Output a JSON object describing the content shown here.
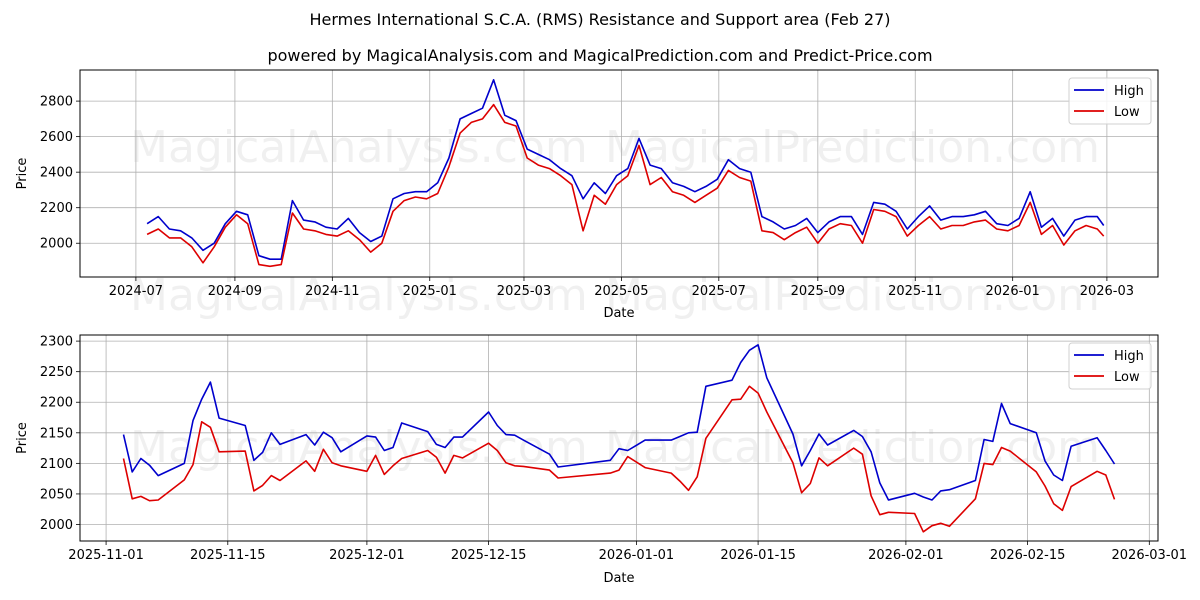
{
  "header": {
    "title": "Hermes International S.C.A. (RMS) Resistance and Support area (Feb 27)",
    "subtitle": "powered by MagicalAnalysis.com and MagicalPrediction.com and Predict-Price.com"
  },
  "watermarks": [
    "MagicalAnalysis.com",
    "MagicalPrediction.com"
  ],
  "colors": {
    "high": "#0000cc",
    "low": "#dd0000",
    "grid": "#b0b0b0"
  },
  "chart_data": [
    {
      "type": "line",
      "title": "Hermes International S.C.A. (RMS) Resistance and Support area (Feb 27)",
      "xlabel": "Date",
      "ylabel": "Price",
      "ylim": [
        1810,
        2975
      ],
      "xlim": [
        "2024-05-27",
        "2026-04-02"
      ],
      "grid": true,
      "legend_position": "upper right",
      "x_ticks": [
        "2024-07",
        "2024-09",
        "2024-11",
        "2025-01",
        "2025-03",
        "2025-05",
        "2025-07",
        "2025-09",
        "2025-11",
        "2026-01",
        "2026-03"
      ],
      "y_ticks": [
        2000,
        2200,
        2400,
        2600,
        2800
      ],
      "x": [
        "2024-07-08",
        "2024-07-15",
        "2024-07-22",
        "2024-07-29",
        "2024-08-05",
        "2024-08-12",
        "2024-08-19",
        "2024-08-26",
        "2024-09-02",
        "2024-09-09",
        "2024-09-16",
        "2024-09-23",
        "2024-09-30",
        "2024-10-07",
        "2024-10-14",
        "2024-10-21",
        "2024-10-28",
        "2024-11-04",
        "2024-11-11",
        "2024-11-18",
        "2024-11-25",
        "2024-12-02",
        "2024-12-09",
        "2024-12-16",
        "2024-12-23",
        "2024-12-30",
        "2025-01-06",
        "2025-01-13",
        "2025-01-20",
        "2025-01-27",
        "2025-02-03",
        "2025-02-10",
        "2025-02-17",
        "2025-02-24",
        "2025-03-03",
        "2025-03-10",
        "2025-03-17",
        "2025-03-24",
        "2025-03-31",
        "2025-04-07",
        "2025-04-14",
        "2025-04-21",
        "2025-04-28",
        "2025-05-05",
        "2025-05-12",
        "2025-05-19",
        "2025-05-26",
        "2025-06-02",
        "2025-06-09",
        "2025-06-16",
        "2025-06-23",
        "2025-06-30",
        "2025-07-07",
        "2025-07-14",
        "2025-07-21",
        "2025-07-28",
        "2025-08-04",
        "2025-08-11",
        "2025-08-18",
        "2025-08-25",
        "2025-09-01",
        "2025-09-08",
        "2025-09-15",
        "2025-09-22",
        "2025-09-29",
        "2025-10-06",
        "2025-10-13",
        "2025-10-20",
        "2025-10-27",
        "2025-11-03",
        "2025-11-10",
        "2025-11-17",
        "2025-11-24",
        "2025-12-01",
        "2025-12-08",
        "2025-12-15",
        "2025-12-22",
        "2025-12-29",
        "2026-01-05",
        "2026-01-12",
        "2026-01-19",
        "2026-01-26",
        "2026-02-02",
        "2026-02-09",
        "2026-02-16",
        "2026-02-23",
        "2026-02-27"
      ],
      "series": [
        {
          "name": "High",
          "color": "#0000cc",
          "values": [
            2110,
            2150,
            2080,
            2070,
            2030,
            1960,
            2000,
            2110,
            2180,
            2160,
            1930,
            1910,
            1910,
            2240,
            2130,
            2120,
            2090,
            2080,
            2140,
            2060,
            2010,
            2040,
            2250,
            2280,
            2290,
            2290,
            2340,
            2480,
            2700,
            2730,
            2760,
            2920,
            2720,
            2690,
            2530,
            2500,
            2470,
            2420,
            2380,
            2250,
            2340,
            2280,
            2380,
            2420,
            2590,
            2440,
            2420,
            2340,
            2320,
            2290,
            2320,
            2360,
            2470,
            2420,
            2400,
            2150,
            2120,
            2080,
            2100,
            2140,
            2060,
            2120,
            2150,
            2150,
            2050,
            2230,
            2220,
            2180,
            2080,
            2150,
            2210,
            2130,
            2150,
            2150,
            2160,
            2180,
            2110,
            2100,
            2140,
            2290,
            2090,
            2140,
            2040,
            2130,
            2150,
            2150,
            2100
          ]
        },
        {
          "name": "Low",
          "color": "#dd0000",
          "values": [
            2050,
            2080,
            2030,
            2030,
            1980,
            1890,
            1980,
            2090,
            2160,
            2110,
            1880,
            1870,
            1880,
            2170,
            2080,
            2070,
            2050,
            2040,
            2070,
            2020,
            1950,
            2000,
            2180,
            2240,
            2260,
            2250,
            2280,
            2430,
            2620,
            2680,
            2700,
            2780,
            2680,
            2660,
            2480,
            2440,
            2420,
            2380,
            2330,
            2070,
            2270,
            2220,
            2330,
            2380,
            2550,
            2330,
            2370,
            2290,
            2270,
            2230,
            2270,
            2310,
            2410,
            2370,
            2350,
            2070,
            2060,
            2020,
            2060,
            2090,
            2000,
            2080,
            2110,
            2100,
            2000,
            2190,
            2180,
            2150,
            2040,
            2100,
            2150,
            2080,
            2100,
            2100,
            2120,
            2130,
            2080,
            2070,
            2100,
            2230,
            2050,
            2100,
            1990,
            2070,
            2100,
            2080,
            2040
          ]
        }
      ]
    },
    {
      "type": "line",
      "xlabel": "Date",
      "ylabel": "Price",
      "ylim": [
        1973,
        2310
      ],
      "xlim": [
        "2025-10-29",
        "2026-03-02"
      ],
      "grid": true,
      "legend_position": "upper right",
      "x_ticks": [
        "2025-11-01",
        "2025-11-15",
        "2025-12-01",
        "2025-12-15",
        "2026-01-01",
        "2026-01-15",
        "2026-02-01",
        "2026-02-15",
        "2026-03-01"
      ],
      "y_ticks": [
        2000,
        2050,
        2100,
        2150,
        2200,
        2250,
        2300
      ],
      "x": [
        "2025-11-03",
        "2025-11-04",
        "2025-11-05",
        "2025-11-06",
        "2025-11-07",
        "2025-11-10",
        "2025-11-11",
        "2025-11-12",
        "2025-11-13",
        "2025-11-14",
        "2025-11-17",
        "2025-11-18",
        "2025-11-19",
        "2025-11-20",
        "2025-11-21",
        "2025-11-24",
        "2025-11-25",
        "2025-11-26",
        "2025-11-27",
        "2025-11-28",
        "2025-12-01",
        "2025-12-02",
        "2025-12-03",
        "2025-12-04",
        "2025-12-05",
        "2025-12-08",
        "2025-12-09",
        "2025-12-10",
        "2025-12-11",
        "2025-12-12",
        "2025-12-15",
        "2025-12-16",
        "2025-12-17",
        "2025-12-18",
        "2025-12-19",
        "2025-12-22",
        "2025-12-23",
        "2025-12-29",
        "2025-12-30",
        "2025-12-31",
        "2026-01-02",
        "2026-01-05",
        "2026-01-06",
        "2026-01-07",
        "2026-01-08",
        "2026-01-09",
        "2026-01-12",
        "2026-01-13",
        "2026-01-14",
        "2026-01-15",
        "2026-01-16",
        "2026-01-19",
        "2026-01-20",
        "2026-01-21",
        "2026-01-22",
        "2026-01-23",
        "2026-01-26",
        "2026-01-27",
        "2026-01-28",
        "2026-01-29",
        "2026-01-30",
        "2026-02-02",
        "2026-02-03",
        "2026-02-04",
        "2026-02-05",
        "2026-02-06",
        "2026-02-09",
        "2026-02-10",
        "2026-02-11",
        "2026-02-12",
        "2026-02-13",
        "2026-02-16",
        "2026-02-17",
        "2026-02-18",
        "2026-02-19",
        "2026-02-20",
        "2026-02-23",
        "2026-02-24",
        "2026-02-25"
      ],
      "series": [
        {
          "name": "High",
          "color": "#0000cc",
          "values": [
            2147,
            2086,
            2108,
            2097,
            2080,
            2100,
            2170,
            2205,
            2233,
            2174,
            2162,
            2105,
            2118,
            2150,
            2131,
            2147,
            2130,
            2151,
            2142,
            2119,
            2145,
            2143,
            2121,
            2126,
            2166,
            2152,
            2131,
            2126,
            2143,
            2143,
            2184,
            2162,
            2147,
            2146,
            2138,
            2115,
            2094,
            2105,
            2124,
            2121,
            2138,
            2138,
            2144,
            2150,
            2151,
            2226,
            2236,
            2265,
            2285,
            2294,
            2240,
            2148,
            2096,
            2121,
            2148,
            2130,
            2154,
            2144,
            2119,
            2068,
            2040,
            2051,
            2045,
            2040,
            2055,
            2057,
            2072,
            2139,
            2136,
            2198,
            2165,
            2150,
            2104,
            2081,
            2072,
            2128,
            2142,
            2121,
            2099
          ]
        },
        {
          "name": "Low",
          "color": "#dd0000",
          "values": [
            2108,
            2042,
            2046,
            2039,
            2040,
            2073,
            2098,
            2168,
            2159,
            2119,
            2120,
            2055,
            2064,
            2080,
            2072,
            2104,
            2087,
            2123,
            2101,
            2096,
            2087,
            2113,
            2082,
            2096,
            2108,
            2121,
            2110,
            2084,
            2113,
            2109,
            2133,
            2121,
            2101,
            2096,
            2095,
            2089,
            2076,
            2084,
            2089,
            2111,
            2093,
            2084,
            2071,
            2056,
            2078,
            2141,
            2204,
            2205,
            2226,
            2215,
            2184,
            2101,
            2052,
            2067,
            2109,
            2096,
            2125,
            2115,
            2047,
            2016,
            2020,
            2018,
            1988,
            1998,
            2002,
            1997,
            2042,
            2100,
            2098,
            2126,
            2120,
            2086,
            2063,
            2034,
            2023,
            2062,
            2087,
            2081,
            2041
          ]
        }
      ]
    }
  ]
}
